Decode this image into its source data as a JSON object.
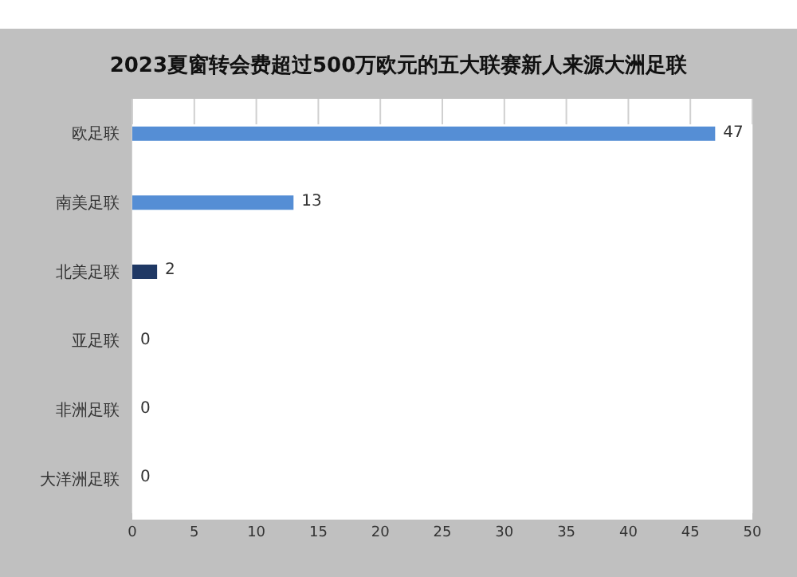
{
  "chart_data": {
    "type": "bar",
    "orientation": "horizontal",
    "title": "2023夏窗转会费超过500万欧元的五大联赛新人来源大洲足联",
    "categories": [
      "欧足联",
      "南美足联",
      "北美足联",
      "亚足联",
      "非洲足联",
      "大洋洲足联"
    ],
    "values": [
      47,
      13,
      2,
      0,
      0,
      0
    ],
    "colors": [
      "#558ed5",
      "#558ed5",
      "#1f3864",
      "#558ed5",
      "#558ed5",
      "#558ed5"
    ],
    "xlim": [
      0,
      50
    ],
    "xticks": [
      0,
      5,
      10,
      15,
      20,
      25,
      30,
      35,
      40,
      45,
      50
    ],
    "grid": "x",
    "data_labels": true
  }
}
